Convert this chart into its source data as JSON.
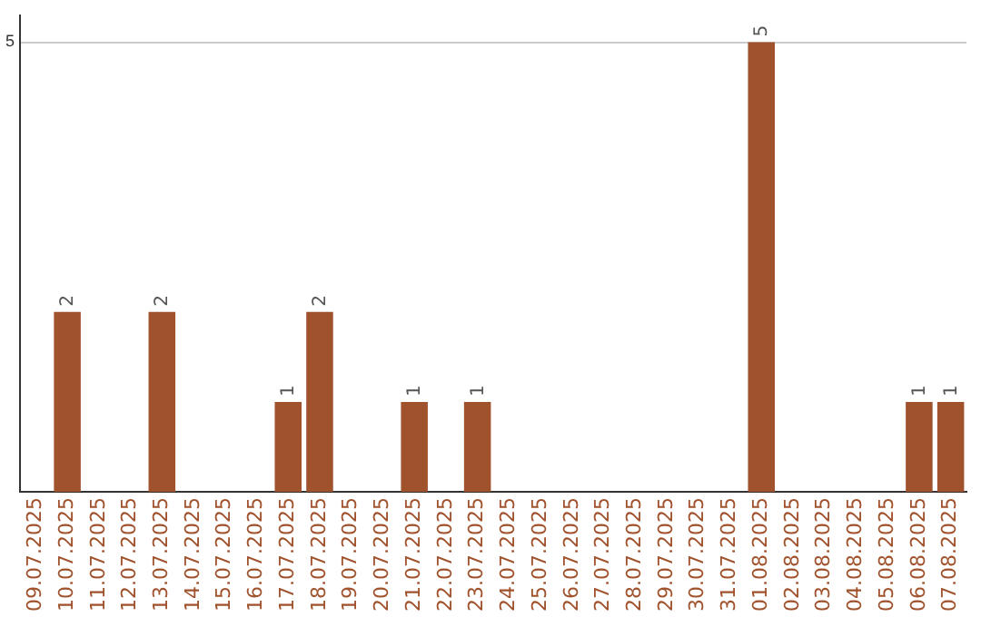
{
  "chart_data": {
    "type": "bar",
    "categories": [
      "09.07.2025",
      "10.07.2025",
      "11.07.2025",
      "12.07.2025",
      "13.07.2025",
      "14.07.2025",
      "15.07.2025",
      "16.07.2025",
      "17.07.2025",
      "18.07.2025",
      "19.07.2025",
      "20.07.2025",
      "21.07.2025",
      "22.07.2025",
      "23.07.2025",
      "24.07.2025",
      "25.07.2025",
      "26.07.2025",
      "27.07.2025",
      "28.07.2025",
      "29.07.2025",
      "30.07.2025",
      "31.07.2025",
      "01.08.2025",
      "02.08.2025",
      "03.08.2025",
      "04.08.2025",
      "05.08.2025",
      "06.08.2025",
      "07.08.2025"
    ],
    "values": [
      0,
      2,
      0,
      0,
      2,
      0,
      0,
      0,
      1,
      2,
      0,
      0,
      1,
      0,
      1,
      0,
      0,
      0,
      0,
      0,
      0,
      0,
      0,
      5,
      0,
      0,
      0,
      0,
      1,
      1
    ],
    "value_labels": [
      null,
      "2",
      null,
      null,
      "2",
      null,
      null,
      null,
      "1",
      "2",
      null,
      null,
      "1",
      null,
      "1",
      null,
      null,
      null,
      null,
      null,
      null,
      null,
      null,
      "5",
      null,
      null,
      null,
      null,
      "1",
      "1"
    ],
    "color": "#a0522d",
    "ylim": [
      0,
      5.3
    ],
    "yticks": [
      5
    ],
    "grid": "y",
    "legend": false
  }
}
